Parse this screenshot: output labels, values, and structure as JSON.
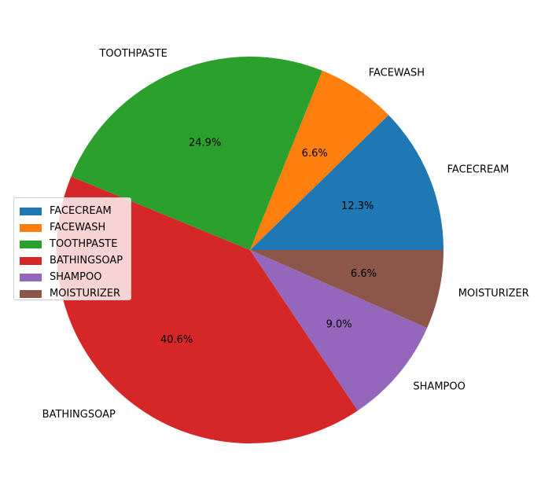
{
  "chart_data": {
    "type": "pie",
    "categories": [
      "FACECREAM",
      "FACEWASH",
      "TOOTHPASTE",
      "BATHINGSOAP",
      "SHAMPOO",
      "MOISTURIZER"
    ],
    "values": [
      12.3,
      6.6,
      24.9,
      40.6,
      9.0,
      6.6
    ],
    "pct_labels": [
      "12.3%",
      "6.6%",
      "24.9%",
      "40.6%",
      "9.0%",
      "6.6%"
    ],
    "colors": [
      "#1f77b4",
      "#ff7f0e",
      "#2ca02c",
      "#d62728",
      "#9467bd",
      "#8c564b"
    ],
    "start_angle_deg": 0,
    "direction": "counterclockwise",
    "legend_placement": "center-left",
    "legend": [
      "FACECREAM",
      "FACEWASH",
      "TOOTHPASTE",
      "BATHINGSOAP",
      "SHAMPOO",
      "MOISTURIZER"
    ]
  }
}
